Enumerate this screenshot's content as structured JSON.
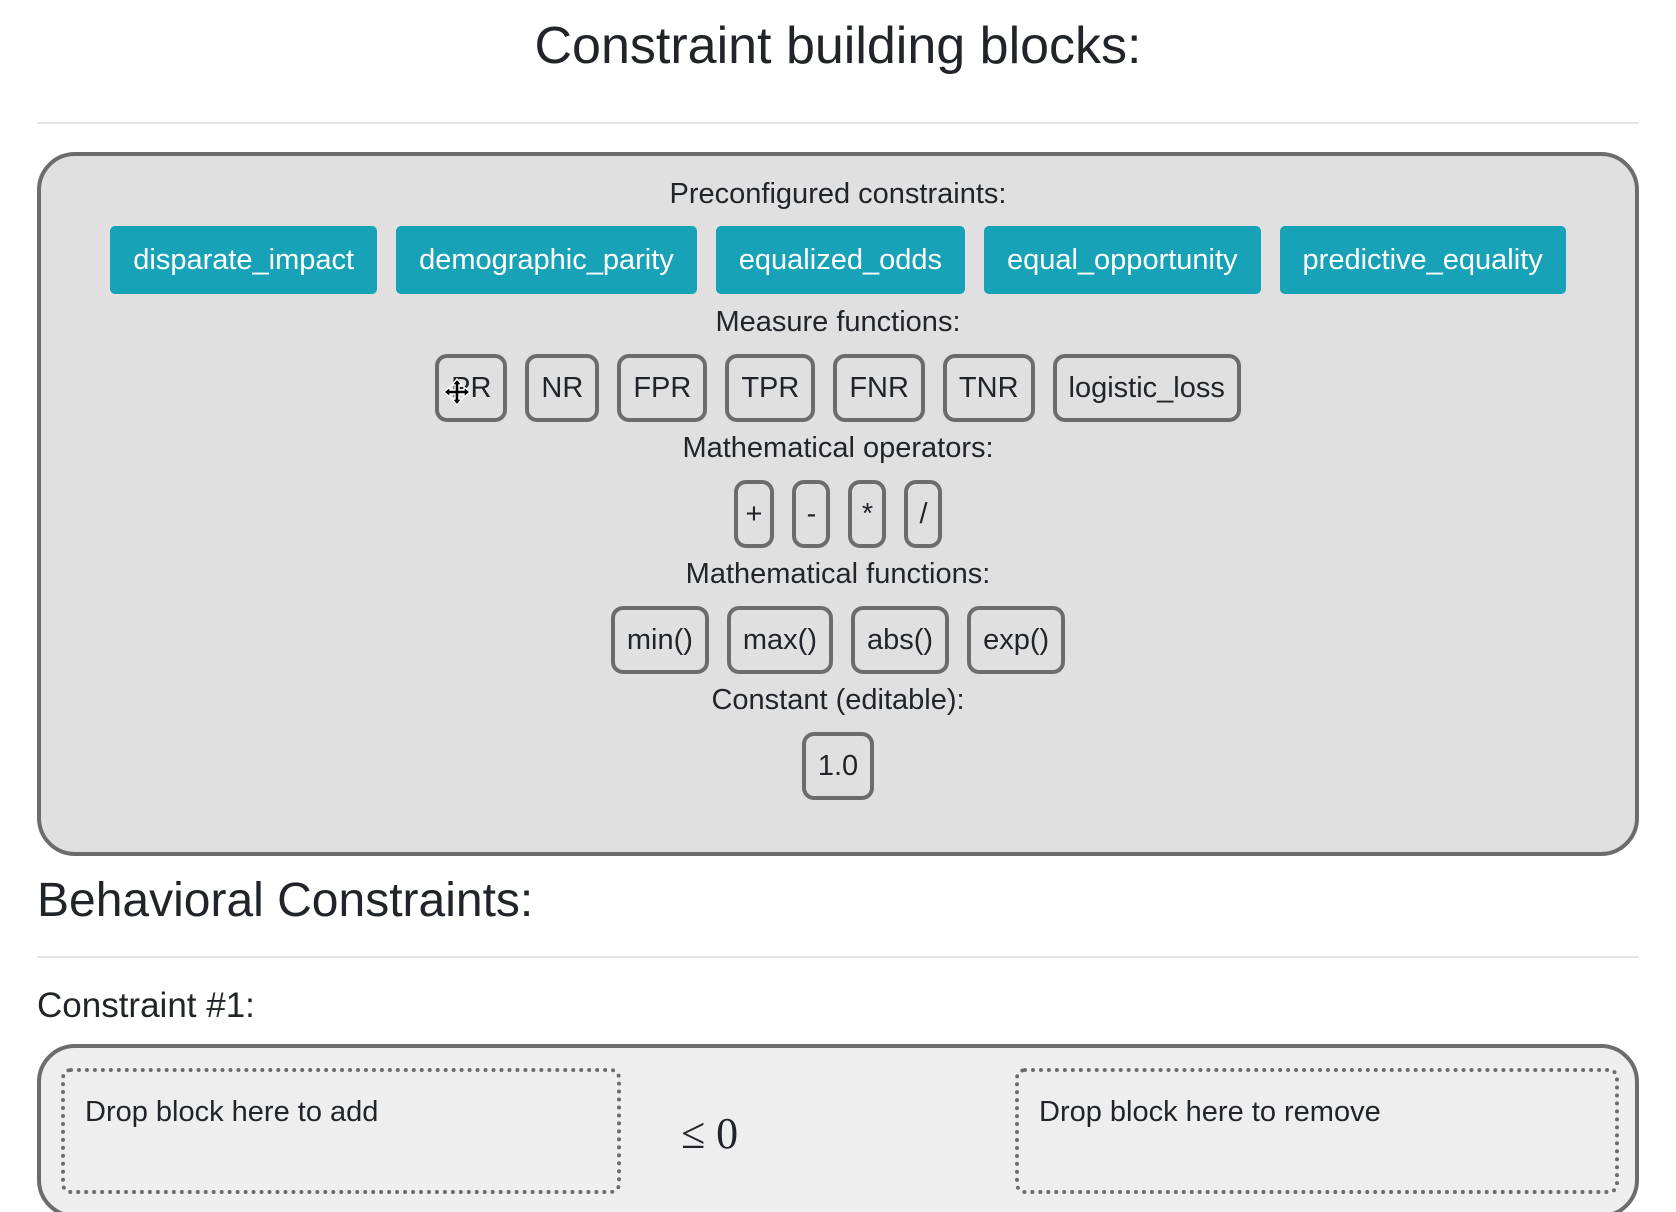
{
  "building_blocks": {
    "title": "Constraint building blocks:",
    "preconfigured_label": "Preconfigured constraints:",
    "preconfigured": [
      "disparate_impact",
      "demographic_parity",
      "equalized_odds",
      "equal_opportunity",
      "predictive_equality"
    ],
    "measure_label": "Measure functions:",
    "measures": [
      "PR",
      "NR",
      "FPR",
      "TPR",
      "FNR",
      "TNR",
      "logistic_loss"
    ],
    "operators_label": "Mathematical operators:",
    "operators": [
      "+",
      "-",
      "*",
      "/"
    ],
    "functions_label": "Mathematical functions:",
    "functions": [
      "min()",
      "max()",
      "abs()",
      "exp()"
    ],
    "constant_label": "Constant (editable):",
    "constant_value": "1.0"
  },
  "behavioral": {
    "title": "Behavioral Constraints:",
    "constraint_label": "Constraint #1:",
    "drop_add": "Drop block here to add",
    "relation": "≤ 0",
    "drop_remove": "Drop block here to remove"
  },
  "colors": {
    "preset_button": "#17a2b8",
    "panel_bg": "#e0e0e0",
    "border": "#6c6c6c"
  },
  "cursor_icon": "move-cursor-icon"
}
